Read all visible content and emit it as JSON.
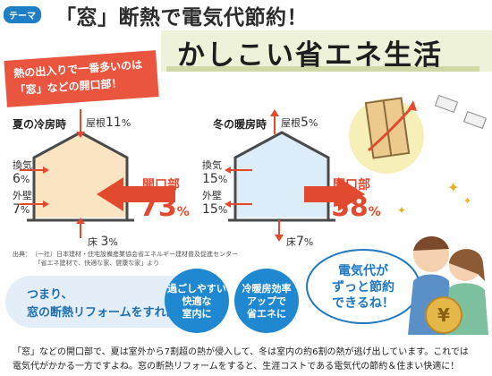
{
  "header": {
    "tag": "テーマ",
    "headline": "「窓」断熱で電気代節約！",
    "title": "かしこい省エネ生活"
  },
  "callout": "熱の出入りで一番多いのは\n「窓」などの開口部！",
  "summer": {
    "label": "夏の冷房時",
    "roof_label": "屋根",
    "roof_value": "11",
    "vent_label": "換気",
    "vent_value": "6",
    "wall_label": "外壁",
    "wall_value": "7",
    "floor_label": "床",
    "floor_value": "3",
    "opening_label": "開口部",
    "opening_value": "73"
  },
  "winter": {
    "label": "冬の暖房時",
    "roof_label": "屋根",
    "roof_value": "5",
    "vent_label": "換気",
    "vent_value": "15",
    "wall_label": "外壁",
    "wall_value": "15",
    "floor_label": "床",
    "floor_value": "7",
    "opening_label": "開口部",
    "opening_value": "58"
  },
  "percent_sign": "%",
  "source": "出典：　（一社）日本建材・住宅設備産業協会省エネルギー建材普及促進センター\n　　　　「省エネ建材で、快適な家、健康な家」より",
  "summary": "つまり、\n窓の断熱リフォームをすれば",
  "circle1": "過ごしやすい\n快適な\n室内に",
  "circle2": "冷暖房効率\nアップで\n省エネに",
  "bubble": "電気代が\nずっと節約\nできるね！",
  "coin_symbol": "¥",
  "bottom": "「窓」などの開口部で、夏は室外から7割超の熱が侵入して、冬は室内の約6割の熱が逃げ出しています。これでは\n電気代がかかる一方ですよね。窓の断熱リフォームをすると、生涯コストである電気代の節約＆住まい快適に！",
  "colors": {
    "accent_red": "#e24a30",
    "accent_blue": "#1f88d0",
    "summer_fill": "#fbe4c2",
    "winter_fill": "#dcecf8"
  }
}
